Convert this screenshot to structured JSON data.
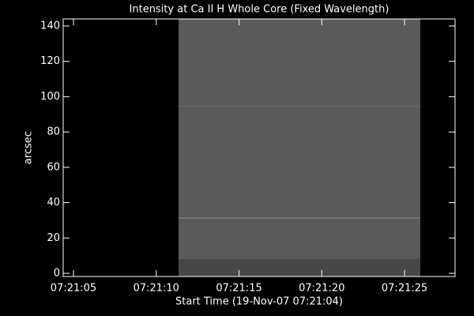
{
  "chart_data": {
    "type": "image",
    "title": "Intensity at Ca II H Whole Core (Fixed Wavelength)",
    "x_label": "Start Time (19-Nov-07 07:21:04)",
    "y_label": "arcsec",
    "xlim": [
      0.38,
      24.05
    ],
    "xticks": [
      {
        "value": 1,
        "label": "07:21:05"
      },
      {
        "value": 6,
        "label": "07:21:10"
      },
      {
        "value": 11,
        "label": "07:21:15"
      },
      {
        "value": 16,
        "label": "07:21:20"
      },
      {
        "value": 21,
        "label": "07:21:25"
      }
    ],
    "ylim": [
      -1.8,
      144
    ],
    "yticks": [
      0,
      20,
      40,
      60,
      80,
      100,
      120,
      140
    ],
    "image": {
      "x": [
        7.35,
        21.95
      ],
      "color": "#5a5a5a",
      "low_band_top": 8,
      "low_band_color": "#474747"
    },
    "lines": [
      {
        "y": 31.3,
        "color": "#8c8c8c"
      },
      {
        "y": 94.5,
        "color": "#6e6e6e"
      }
    ]
  }
}
